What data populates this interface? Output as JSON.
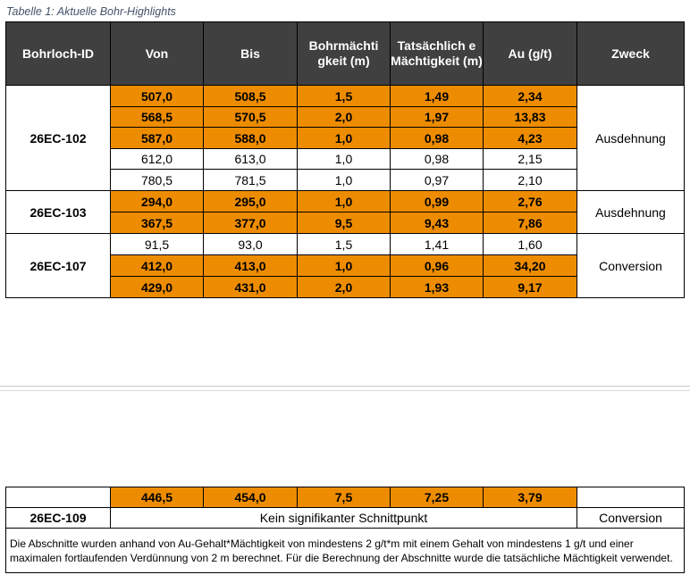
{
  "caption": "Tabelle 1: Aktuelle Bohr-Highlights",
  "headers": [
    "Bohrloch-ID",
    "Von",
    "Bis",
    "Bohrmächtigkeit (m)",
    "Tatsächliche Mächtigkeit (m)",
    "Au (g/t)",
    "Zweck"
  ],
  "header_display": {
    "h3": "Bohrmächti gkeit (m)",
    "h4": "Tatsächlich e Mächtigkeit (m)"
  },
  "colors": {
    "header_bg": "#404040",
    "highlight": "#ed8c00"
  },
  "groups": [
    {
      "id": "26EC-102",
      "zweck": "Ausdehnung",
      "rows": [
        {
          "von": "507,0",
          "bis": "508,5",
          "bohr": "1,5",
          "tats": "1,49",
          "au": "2,34",
          "highlight": true
        },
        {
          "von": "568,5",
          "bis": "570,5",
          "bohr": "2,0",
          "tats": "1,97",
          "au": "13,83",
          "highlight": true
        },
        {
          "von": "587,0",
          "bis": "588,0",
          "bohr": "1,0",
          "tats": "0,98",
          "au": "4,23",
          "highlight": true
        },
        {
          "von": "612,0",
          "bis": "613,0",
          "bohr": "1,0",
          "tats": "0,98",
          "au": "2,15",
          "highlight": false
        },
        {
          "von": "780,5",
          "bis": "781,5",
          "bohr": "1,0",
          "tats": "0,97",
          "au": "2,10",
          "highlight": false
        }
      ]
    },
    {
      "id": "26EC-103",
      "zweck": "Ausdehnung",
      "rows": [
        {
          "von": "294,0",
          "bis": "295,0",
          "bohr": "1,0",
          "tats": "0,99",
          "au": "2,76",
          "highlight": true
        },
        {
          "von": "367,5",
          "bis": "377,0",
          "bohr": "9,5",
          "tats": "9,43",
          "au": "7,86",
          "highlight": true
        }
      ]
    },
    {
      "id": "26EC-107",
      "zweck": "Conversion",
      "rows": [
        {
          "von": "91,5",
          "bis": "93,0",
          "bohr": "1,5",
          "tats": "1,41",
          "au": "1,60",
          "highlight": false
        },
        {
          "von": "412,0",
          "bis": "413,0",
          "bohr": "1,0",
          "tats": "0,96",
          "au": "34,20",
          "highlight": true
        },
        {
          "von": "429,0",
          "bis": "431,0",
          "bohr": "2,0",
          "tats": "1,93",
          "au": "9,17",
          "highlight": true
        }
      ]
    }
  ],
  "continuation_row": {
    "von": "446,5",
    "bis": "454,0",
    "bohr": "7,5",
    "tats": "7,25",
    "au": "3,79",
    "highlight": true
  },
  "row_109": {
    "id": "26EC-109",
    "text": "Kein signifikanter Schnittpunkt",
    "zweck": "Conversion"
  },
  "footnote": "Die Abschnitte wurden anhand von Au-Gehalt*Mächtigkeit von mindestens 2 g/t*m mit einem Gehalt von mindestens 1 g/t und einer maximalen fortlaufenden Verdünnung von 2 m berechnet. Für die Berechnung der Abschnitte wurde die tatsächliche Mächtigkeit verwendet."
}
